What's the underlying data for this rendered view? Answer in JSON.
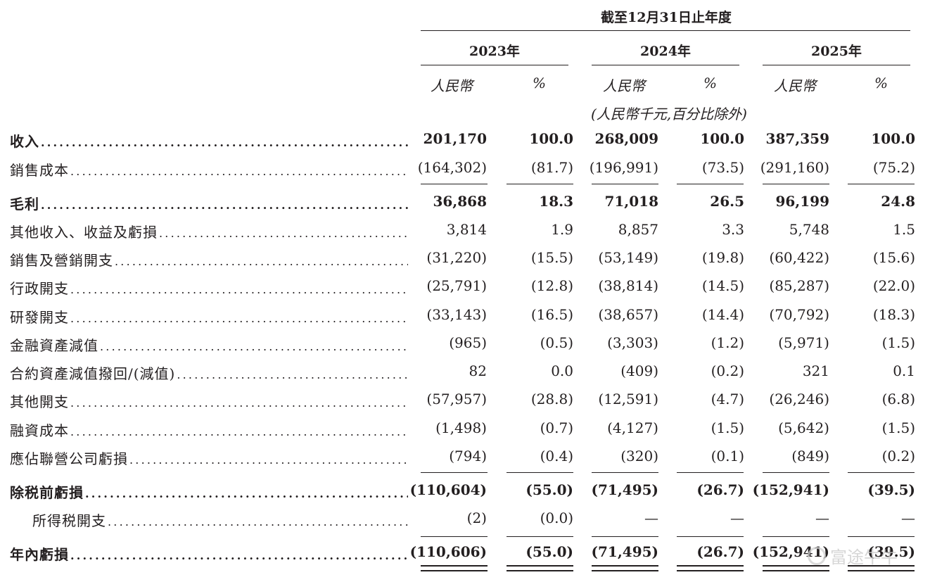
{
  "header": {
    "period_title": "截至12月31日止年度",
    "years": [
      "2023年",
      "2024年",
      "2025年"
    ],
    "currency_label": "人民幣",
    "percent_label": "%",
    "unit_note": "(人民幣千元,百分比除外)"
  },
  "rows": [
    {
      "label": "收入",
      "bold": true,
      "values": [
        "201,170",
        "100.0",
        "268,009",
        "100.0",
        "387,359",
        "100.0"
      ]
    },
    {
      "label": "銷售成本",
      "bold": false,
      "values": [
        "(164,302)",
        "(81.7)",
        "(196,991)",
        "(73.5)",
        "(291,160)",
        "(75.2)"
      ]
    },
    {
      "label": "毛利",
      "bold": true,
      "values": [
        "36,868",
        "18.3",
        "71,018",
        "26.5",
        "96,199",
        "24.8"
      ]
    },
    {
      "label": "其他收入、收益及虧損",
      "bold": false,
      "values": [
        "3,814",
        "1.9",
        "8,857",
        "3.3",
        "5,748",
        "1.5"
      ]
    },
    {
      "label": "銷售及營銷開支",
      "bold": false,
      "values": [
        "(31,220)",
        "(15.5)",
        "(53,149)",
        "(19.8)",
        "(60,422)",
        "(15.6)"
      ]
    },
    {
      "label": "行政開支",
      "bold": false,
      "values": [
        "(25,791)",
        "(12.8)",
        "(38,814)",
        "(14.5)",
        "(85,287)",
        "(22.0)"
      ]
    },
    {
      "label": "研發開支",
      "bold": false,
      "values": [
        "(33,143)",
        "(16.5)",
        "(38,657)",
        "(14.4)",
        "(70,792)",
        "(18.3)"
      ]
    },
    {
      "label": "金融資產減值",
      "bold": false,
      "values": [
        "(965)",
        "(0.5)",
        "(3,303)",
        "(1.2)",
        "(5,971)",
        "(1.5)"
      ]
    },
    {
      "label": "合約資產減值撥回/(減值)",
      "bold": false,
      "values": [
        "82",
        "0.0",
        "(409)",
        "(0.2)",
        "321",
        "0.1"
      ]
    },
    {
      "label": "其他開支",
      "bold": false,
      "values": [
        "(57,957)",
        "(28.8)",
        "(12,591)",
        "(4.7)",
        "(26,246)",
        "(6.8)"
      ]
    },
    {
      "label": "融資成本",
      "bold": false,
      "values": [
        "(1,498)",
        "(0.7)",
        "(4,127)",
        "(1.5)",
        "(5,642)",
        "(1.5)"
      ]
    },
    {
      "label": "應佔聯營公司虧損",
      "bold": false,
      "values": [
        "(794)",
        "(0.4)",
        "(320)",
        "(0.1)",
        "(849)",
        "(0.2)"
      ]
    },
    {
      "label": "除税前虧損",
      "bold": true,
      "values": [
        "(110,604)",
        "(55.0)",
        "(71,495)",
        "(26.7)",
        "(152,941)",
        "(39.5)"
      ]
    },
    {
      "label": "所得税開支",
      "bold": false,
      "indent": true,
      "values": [
        "(2)",
        "(0.0)",
        "—",
        "—",
        "—",
        "—"
      ]
    },
    {
      "label": "年內虧損",
      "bold": true,
      "values": [
        "(110,606)",
        "(55.0)",
        "(71,495)",
        "(26.7)",
        "(152,941)",
        "(39.5)"
      ]
    }
  ],
  "watermark": "富途牛牛"
}
